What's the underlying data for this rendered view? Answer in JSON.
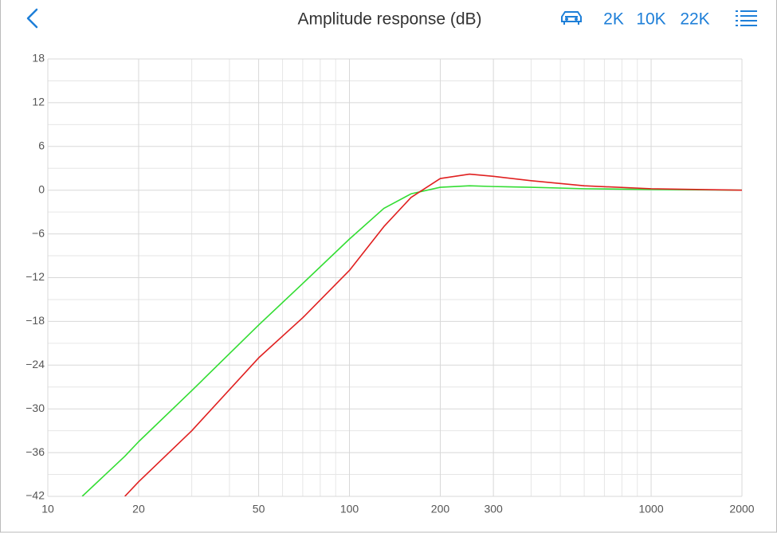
{
  "toolbar": {
    "buttons": [
      "2K",
      "10K",
      "22K"
    ]
  },
  "chart_data": {
    "type": "line",
    "title": "Amplitude response (dB)",
    "x": [
      13,
      18,
      20,
      30,
      50,
      70,
      100,
      130,
      160,
      200,
      250,
      300,
      400,
      600,
      1000,
      2000
    ],
    "series": [
      {
        "name": "Green",
        "color": "#33dd33",
        "values": [
          -42,
          -36.5,
          -34.5,
          -27.5,
          -18.5,
          -12.8,
          -6.7,
          -2.5,
          -0.5,
          0.4,
          0.6,
          0.5,
          0.4,
          0.2,
          0.1,
          0
        ]
      },
      {
        "name": "Red",
        "color": "#e02020",
        "values": [
          null,
          -42,
          -40,
          -33,
          -23,
          -17.5,
          -11,
          -5,
          -1,
          1.6,
          2.2,
          1.9,
          1.3,
          0.6,
          0.2,
          0
        ]
      }
    ],
    "xscale": "log",
    "xlim": [
      10,
      2000
    ],
    "xticks": [
      10,
      20,
      50,
      100,
      200,
      300,
      1000,
      2000
    ],
    "x_minor_ticks": [
      30,
      40,
      60,
      70,
      80,
      90,
      400,
      500,
      600,
      700,
      800,
      900
    ],
    "ylim": [
      -42,
      18
    ],
    "yticks": [
      18,
      12,
      6,
      0,
      {
        "value": -6,
        "label": "−6"
      },
      {
        "value": -12,
        "label": "−12"
      },
      {
        "value": -18,
        "label": "−18"
      },
      {
        "value": -24,
        "label": "−24"
      },
      {
        "value": -30,
        "label": "−30"
      },
      {
        "value": -36,
        "label": "−36"
      },
      {
        "value": -42,
        "label": "−42"
      }
    ],
    "y_minor_ticks": [
      15,
      9,
      3,
      -3,
      -9,
      -15,
      -21,
      -27,
      -33,
      -39
    ],
    "grid": true
  }
}
